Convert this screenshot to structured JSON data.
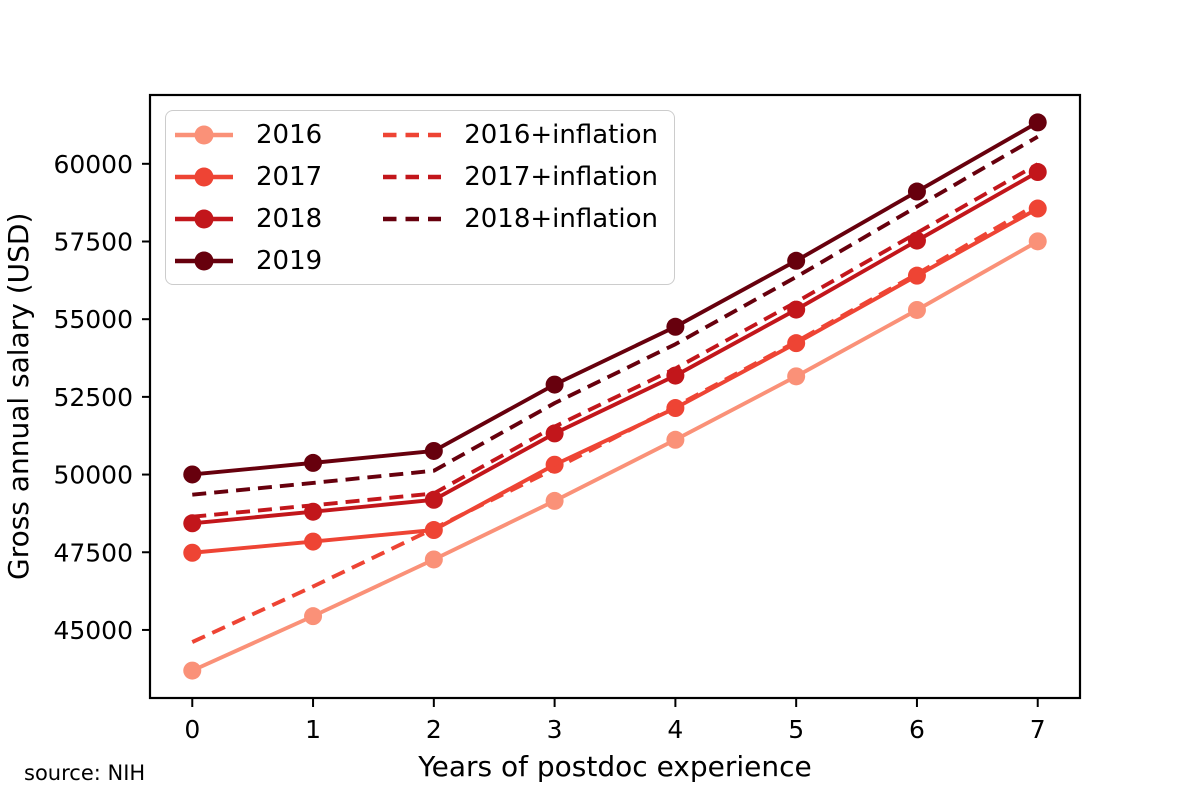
{
  "chart_data": {
    "type": "line",
    "title": "",
    "xlabel": "Years of postdoc experience",
    "ylabel": "Gross annual salary (USD)",
    "source_note": "source: NIH",
    "x": [
      0,
      1,
      2,
      3,
      4,
      5,
      6,
      7
    ],
    "xlim": [
      -0.35,
      7.35
    ],
    "ylim": [
      42810,
      62214
    ],
    "xtick_values": [
      0,
      1,
      2,
      3,
      4,
      5,
      6,
      7
    ],
    "xtick_labels": [
      "0",
      "1",
      "2",
      "3",
      "4",
      "5",
      "6",
      "7"
    ],
    "ytick_values": [
      45000,
      47500,
      50000,
      52500,
      55000,
      57500,
      60000
    ],
    "ytick_labels": [
      "45000",
      "47500",
      "50000",
      "52500",
      "55000",
      "57500",
      "60000"
    ],
    "grid": false,
    "legend_position": "upper left",
    "legend_columns": 2,
    "series": [
      {
        "name": "2016",
        "line_style": "solid",
        "marker": "circle",
        "color": "#FA9178",
        "values": [
          43692,
          45444,
          47268,
          49152,
          51120,
          53160,
          55296,
          57504
        ]
      },
      {
        "name": "2017",
        "line_style": "solid",
        "marker": "circle",
        "color": "#EE4434",
        "values": [
          47484,
          47844,
          48216,
          50316,
          52140,
          54228,
          56400,
          58560
        ]
      },
      {
        "name": "2018",
        "line_style": "solid",
        "marker": "circle",
        "color": "#C2161B",
        "values": [
          48432,
          48804,
          49188,
          51324,
          53184,
          55308,
          57528,
          59736
        ]
      },
      {
        "name": "2019",
        "line_style": "solid",
        "marker": "circle",
        "color": "#67000D",
        "values": [
          50004,
          50376,
          50760,
          52896,
          54756,
          56880,
          59108,
          61332
        ]
      },
      {
        "name": "2016+inflation",
        "line_style": "dashed",
        "marker": "none",
        "color": "#EE4434",
        "values": [
          44610,
          46398,
          48261,
          50184,
          52194,
          54276,
          56457,
          58712
        ]
      },
      {
        "name": "2017+inflation",
        "line_style": "dashed",
        "marker": "none",
        "color": "#C2161B",
        "values": [
          48643,
          49011,
          49392,
          51544,
          53412,
          55551,
          57776,
          59989
        ]
      },
      {
        "name": "2018+inflation",
        "line_style": "dashed",
        "marker": "none",
        "color": "#67000D",
        "values": [
          49352,
          49731,
          50123,
          52299,
          54194,
          56359,
          58621,
          60871
        ]
      }
    ],
    "colors": {
      "axis": "#000000",
      "legend_border": "#cccccc",
      "background": "#ffffff"
    }
  }
}
